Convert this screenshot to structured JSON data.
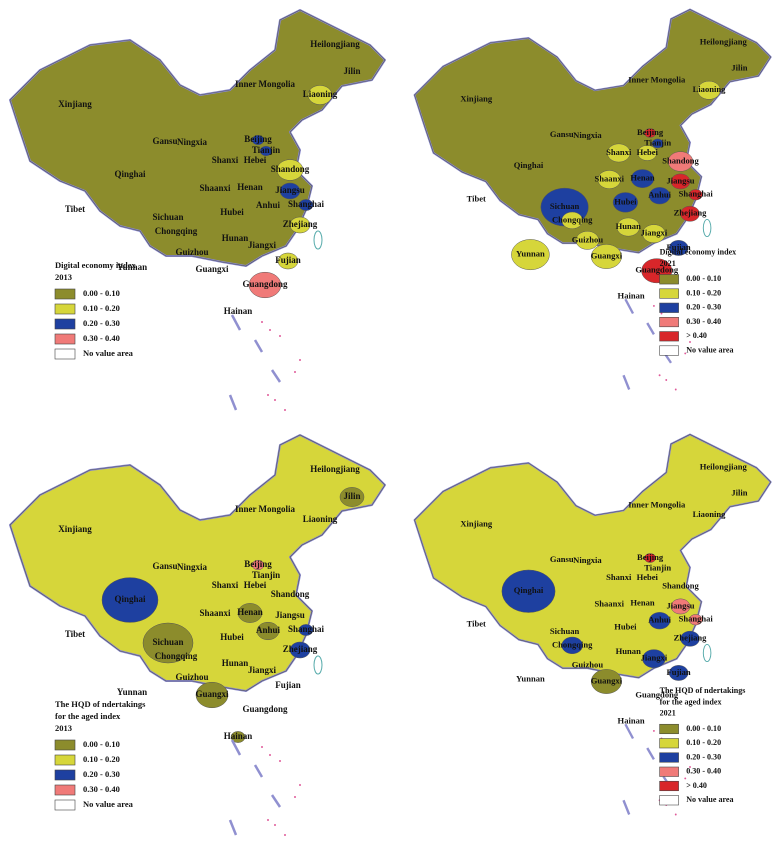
{
  "panels": [
    {
      "base_color": "#8c8c2c",
      "legend": {
        "title": [
          "Digital economy index"
        ],
        "year": "2013",
        "items": [
          {
            "label": "0.00 - 0.10",
            "color": "#8c8c2c"
          },
          {
            "label": "0.10 - 0.20",
            "color": "#d6d63a"
          },
          {
            "label": "0.20 - 0.30",
            "color": "#1e40a0"
          },
          {
            "label": "0.30 - 0.40",
            "color": "#f07a78"
          },
          {
            "label": "No value area",
            "color": "#ffffff"
          }
        ]
      },
      "provinces": [
        {
          "name": "Heilongjiang",
          "color": "#8c8c2c"
        },
        {
          "name": "Jilin",
          "color": "#8c8c2c"
        },
        {
          "name": "Liaoning",
          "color": "#d6d63a"
        },
        {
          "name": "Inner Mongolia",
          "color": "#8c8c2c"
        },
        {
          "name": "Xinjiang",
          "color": "#8c8c2c"
        },
        {
          "name": "Gansu",
          "color": "#8c8c2c"
        },
        {
          "name": "Ningxia",
          "color": "#8c8c2c"
        },
        {
          "name": "Beijing",
          "color": "#1e40a0"
        },
        {
          "name": "Tianjin",
          "color": "#1e40a0"
        },
        {
          "name": "Hebei",
          "color": "#8c8c2c"
        },
        {
          "name": "Shanxi",
          "color": "#8c8c2c"
        },
        {
          "name": "Shandong",
          "color": "#d6d63a"
        },
        {
          "name": "Qinghai",
          "color": "#8c8c2c"
        },
        {
          "name": "Shaanxi",
          "color": "#8c8c2c"
        },
        {
          "name": "Henan",
          "color": "#8c8c2c"
        },
        {
          "name": "Jiangsu",
          "color": "#1e40a0"
        },
        {
          "name": "Anhui",
          "color": "#8c8c2c"
        },
        {
          "name": "Shanghai",
          "color": "#1e40a0"
        },
        {
          "name": "Tibet",
          "color": "#8c8c2c"
        },
        {
          "name": "Sichuan",
          "color": "#8c8c2c"
        },
        {
          "name": "Hubei",
          "color": "#8c8c2c"
        },
        {
          "name": "Chongqing",
          "color": "#8c8c2c"
        },
        {
          "name": "Zhejiang",
          "color": "#d6d63a"
        },
        {
          "name": "Hunan",
          "color": "#8c8c2c"
        },
        {
          "name": "Jiangxi",
          "color": "#8c8c2c"
        },
        {
          "name": "Guizhou",
          "color": "#8c8c2c"
        },
        {
          "name": "Fujian",
          "color": "#d6d63a"
        },
        {
          "name": "Yunnan",
          "color": "#8c8c2c"
        },
        {
          "name": "Guangxi",
          "color": "#8c8c2c"
        },
        {
          "name": "Guangdong",
          "color": "#f07a78"
        },
        {
          "name": "Hainan",
          "color": "#8c8c2c"
        }
      ]
    },
    {
      "base_color": "#8c8c2c",
      "legend": {
        "title": [
          "Digital economy index"
        ],
        "year": "2021",
        "items": [
          {
            "label": "0.00 - 0.10",
            "color": "#8c8c2c"
          },
          {
            "label": "0.10 - 0.20",
            "color": "#d6d63a"
          },
          {
            "label": "0.20 - 0.30",
            "color": "#1e40a0"
          },
          {
            "label": "0.30 - 0.40",
            "color": "#f07a78"
          },
          {
            "label": "> 0.40",
            "color": "#d8262a"
          },
          {
            "label": "No value area",
            "color": "#ffffff"
          }
        ]
      },
      "provinces": [
        {
          "name": "Heilongjiang",
          "color": "#8c8c2c"
        },
        {
          "name": "Jilin",
          "color": "#8c8c2c"
        },
        {
          "name": "Liaoning",
          "color": "#d6d63a"
        },
        {
          "name": "Inner Mongolia",
          "color": "#8c8c2c"
        },
        {
          "name": "Xinjiang",
          "color": "#8c8c2c"
        },
        {
          "name": "Gansu",
          "color": "#8c8c2c"
        },
        {
          "name": "Ningxia",
          "color": "#8c8c2c"
        },
        {
          "name": "Beijing",
          "color": "#d8262a"
        },
        {
          "name": "Tianjin",
          "color": "#1e40a0"
        },
        {
          "name": "Hebei",
          "color": "#d6d63a"
        },
        {
          "name": "Shanxi",
          "color": "#d6d63a"
        },
        {
          "name": "Shandong",
          "color": "#f07a78"
        },
        {
          "name": "Qinghai",
          "color": "#8c8c2c"
        },
        {
          "name": "Shaanxi",
          "color": "#d6d63a"
        },
        {
          "name": "Henan",
          "color": "#1e40a0"
        },
        {
          "name": "Jiangsu",
          "color": "#d8262a"
        },
        {
          "name": "Anhui",
          "color": "#1e40a0"
        },
        {
          "name": "Shanghai",
          "color": "#d8262a"
        },
        {
          "name": "Tibet",
          "color": "#8c8c2c"
        },
        {
          "name": "Sichuan",
          "color": "#1e40a0"
        },
        {
          "name": "Hubei",
          "color": "#1e40a0"
        },
        {
          "name": "Chongqing",
          "color": "#d6d63a"
        },
        {
          "name": "Zhejiang",
          "color": "#d8262a"
        },
        {
          "name": "Hunan",
          "color": "#d6d63a"
        },
        {
          "name": "Jiangxi",
          "color": "#d6d63a"
        },
        {
          "name": "Guizhou",
          "color": "#d6d63a"
        },
        {
          "name": "Fujian",
          "color": "#1e40a0"
        },
        {
          "name": "Yunnan",
          "color": "#d6d63a"
        },
        {
          "name": "Guangxi",
          "color": "#d6d63a"
        },
        {
          "name": "Guangdong",
          "color": "#d8262a"
        },
        {
          "name": "Hainan",
          "color": "#8c8c2c"
        }
      ]
    },
    {
      "base_color": "#d6d63a",
      "legend": {
        "title": [
          "The HQD of ndertakings",
          "for the aged index"
        ],
        "year": "2013",
        "items": [
          {
            "label": "0.00 - 0.10",
            "color": "#8c8c2c"
          },
          {
            "label": "0.10 - 0.20",
            "color": "#d6d63a"
          },
          {
            "label": "0.20 - 0.30",
            "color": "#1e40a0"
          },
          {
            "label": "0.30 - 0.40",
            "color": "#f07a78"
          },
          {
            "label": "No value area",
            "color": "#ffffff"
          }
        ]
      },
      "provinces": [
        {
          "name": "Heilongjiang",
          "color": "#d6d63a"
        },
        {
          "name": "Jilin",
          "color": "#8c8c2c"
        },
        {
          "name": "Liaoning",
          "color": "#d6d63a"
        },
        {
          "name": "Inner Mongolia",
          "color": "#d6d63a"
        },
        {
          "name": "Xinjiang",
          "color": "#d6d63a"
        },
        {
          "name": "Gansu",
          "color": "#d6d63a"
        },
        {
          "name": "Ningxia",
          "color": "#d6d63a"
        },
        {
          "name": "Beijing",
          "color": "#f07a78"
        },
        {
          "name": "Tianjin",
          "color": "#d6d63a"
        },
        {
          "name": "Hebei",
          "color": "#d6d63a"
        },
        {
          "name": "Shanxi",
          "color": "#d6d63a"
        },
        {
          "name": "Shandong",
          "color": "#d6d63a"
        },
        {
          "name": "Qinghai",
          "color": "#1e40a0"
        },
        {
          "name": "Shaanxi",
          "color": "#d6d63a"
        },
        {
          "name": "Henan",
          "color": "#8c8c2c"
        },
        {
          "name": "Jiangsu",
          "color": "#d6d63a"
        },
        {
          "name": "Anhui",
          "color": "#8c8c2c"
        },
        {
          "name": "Shanghai",
          "color": "#1e40a0"
        },
        {
          "name": "Tibet",
          "color": "#d6d63a"
        },
        {
          "name": "Sichuan",
          "color": "#8c8c2c"
        },
        {
          "name": "Hubei",
          "color": "#d6d63a"
        },
        {
          "name": "Chongqing",
          "color": "#d6d63a"
        },
        {
          "name": "Zhejiang",
          "color": "#1e40a0"
        },
        {
          "name": "Hunan",
          "color": "#d6d63a"
        },
        {
          "name": "Jiangxi",
          "color": "#d6d63a"
        },
        {
          "name": "Guizhou",
          "color": "#d6d63a"
        },
        {
          "name": "Fujian",
          "color": "#d6d63a"
        },
        {
          "name": "Yunnan",
          "color": "#d6d63a"
        },
        {
          "name": "Guangxi",
          "color": "#8c8c2c"
        },
        {
          "name": "Guangdong",
          "color": "#d6d63a"
        },
        {
          "name": "Hainan",
          "color": "#8c8c2c"
        }
      ]
    },
    {
      "base_color": "#d6d63a",
      "legend": {
        "title": [
          "The HQD of ndertakings",
          "for the aged index"
        ],
        "year": "2021",
        "items": [
          {
            "label": "0.00 - 0.10",
            "color": "#8c8c2c"
          },
          {
            "label": "0.10 - 0.20",
            "color": "#d6d63a"
          },
          {
            "label": "0.20 - 0.30",
            "color": "#1e40a0"
          },
          {
            "label": "0.30 - 0.40",
            "color": "#f07a78"
          },
          {
            "label": "> 0.40",
            "color": "#d8262a"
          },
          {
            "label": "No value area",
            "color": "#ffffff"
          }
        ]
      },
      "provinces": [
        {
          "name": "Heilongjiang",
          "color": "#d6d63a"
        },
        {
          "name": "Jilin",
          "color": "#d6d63a"
        },
        {
          "name": "Liaoning",
          "color": "#d6d63a"
        },
        {
          "name": "Inner Mongolia",
          "color": "#d6d63a"
        },
        {
          "name": "Xinjiang",
          "color": "#d6d63a"
        },
        {
          "name": "Gansu",
          "color": "#d6d63a"
        },
        {
          "name": "Ningxia",
          "color": "#d6d63a"
        },
        {
          "name": "Beijing",
          "color": "#d8262a"
        },
        {
          "name": "Tianjin",
          "color": "#d6d63a"
        },
        {
          "name": "Hebei",
          "color": "#d6d63a"
        },
        {
          "name": "Shanxi",
          "color": "#d6d63a"
        },
        {
          "name": "Shandong",
          "color": "#d6d63a"
        },
        {
          "name": "Qinghai",
          "color": "#1e40a0"
        },
        {
          "name": "Shaanxi",
          "color": "#d6d63a"
        },
        {
          "name": "Henan",
          "color": "#d6d63a"
        },
        {
          "name": "Jiangsu",
          "color": "#f07a78"
        },
        {
          "name": "Anhui",
          "color": "#1e40a0"
        },
        {
          "name": "Shanghai",
          "color": "#f07a78"
        },
        {
          "name": "Tibet",
          "color": "#d6d63a"
        },
        {
          "name": "Sichuan",
          "color": "#d6d63a"
        },
        {
          "name": "Hubei",
          "color": "#d6d63a"
        },
        {
          "name": "Chongqing",
          "color": "#1e40a0"
        },
        {
          "name": "Zhejiang",
          "color": "#1e40a0"
        },
        {
          "name": "Hunan",
          "color": "#d6d63a"
        },
        {
          "name": "Jiangxi",
          "color": "#1e40a0"
        },
        {
          "name": "Guizhou",
          "color": "#d6d63a"
        },
        {
          "name": "Fujian",
          "color": "#1e40a0"
        },
        {
          "name": "Yunnan",
          "color": "#d6d63a"
        },
        {
          "name": "Guangxi",
          "color": "#8c8c2c"
        },
        {
          "name": "Guangdong",
          "color": "#d6d63a"
        },
        {
          "name": "Hainan",
          "color": "#d6d63a"
        }
      ]
    }
  ]
}
